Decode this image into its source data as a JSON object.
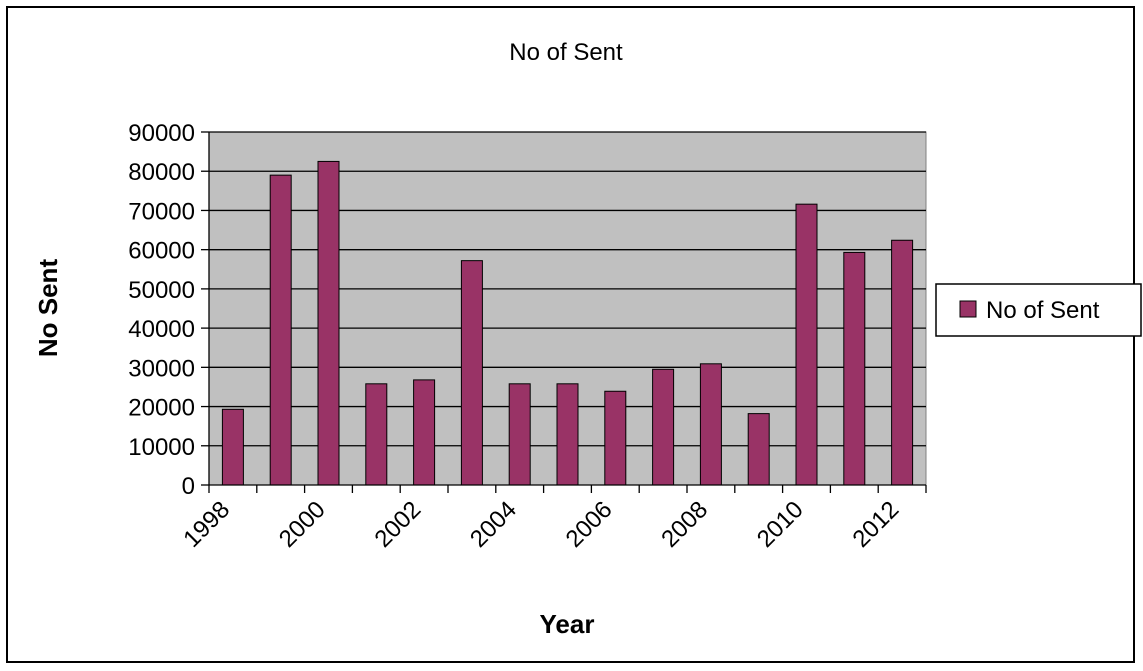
{
  "chart_data": {
    "type": "bar",
    "title": "No of Sent",
    "xlabel": "Year",
    "ylabel": "No Sent",
    "categories": [
      "1998",
      "1999",
      "2000",
      "2001",
      "2002",
      "2003",
      "2004",
      "2005",
      "2006",
      "2007",
      "2008",
      "2009",
      "2010",
      "2011",
      "2012"
    ],
    "x_tick_labels": [
      "1998",
      "2000",
      "2002",
      "2004",
      "2006",
      "2008",
      "2010",
      "2012"
    ],
    "series": [
      {
        "name": "No of Sent",
        "values": [
          19300,
          79000,
          82500,
          25800,
          26800,
          57200,
          25800,
          25800,
          23900,
          29500,
          30900,
          18200,
          71600,
          59300,
          62400
        ]
      }
    ],
    "ylim": [
      0,
      90000
    ],
    "yticks": [
      0,
      10000,
      20000,
      30000,
      40000,
      50000,
      60000,
      70000,
      80000,
      90000
    ],
    "grid": true,
    "legend": "right",
    "colors": {
      "bar": "#993366",
      "plot_background": "#c0c0c0",
      "gridline": "#000000"
    }
  }
}
